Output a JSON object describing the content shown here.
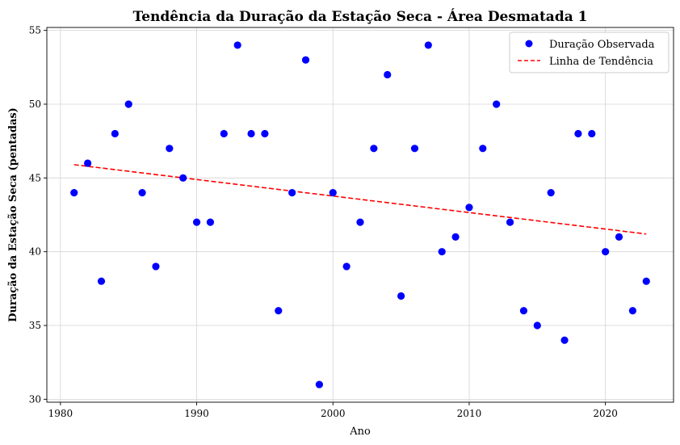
{
  "chart_data": {
    "type": "scatter",
    "title": "Tendência da Duração da Estação Seca - Área Desmatada 1",
    "xlabel": "Ano",
    "ylabel": "Duração da Estação Seca (pentadas)",
    "xlim": [
      1979,
      2025
    ],
    "ylim": [
      29.8,
      55.2
    ],
    "xticks": [
      1980,
      1990,
      2000,
      2010,
      2020
    ],
    "yticks": [
      30,
      35,
      40,
      45,
      50,
      55
    ],
    "grid": true,
    "legend_position": "top-right",
    "series": [
      {
        "name": "Duração Observada",
        "kind": "scatter",
        "color": "#0000ff",
        "x": [
          1981,
          1982,
          1983,
          1984,
          1985,
          1986,
          1987,
          1988,
          1989,
          1990,
          1991,
          1992,
          1993,
          1994,
          1995,
          1996,
          1997,
          1998,
          1999,
          2000,
          2001,
          2002,
          2003,
          2004,
          2005,
          2006,
          2007,
          2008,
          2009,
          2010,
          2011,
          2012,
          2013,
          2014,
          2015,
          2016,
          2017,
          2018,
          2019,
          2020,
          2021,
          2022,
          2023
        ],
        "y": [
          44,
          46,
          38,
          48,
          50,
          44,
          39,
          47,
          45,
          42,
          42,
          48,
          54,
          48,
          48,
          36,
          44,
          53,
          31,
          44,
          39,
          42,
          47,
          52,
          37,
          47,
          54,
          40,
          41,
          43,
          47,
          50,
          42,
          36,
          35,
          44,
          34,
          48,
          48,
          40,
          41,
          36,
          38
        ]
      },
      {
        "name": "Linha de Tendência",
        "kind": "line",
        "style": "dashed",
        "color": "#ff0000",
        "x": [
          1981,
          2023
        ],
        "y": [
          45.9,
          41.2
        ]
      }
    ]
  }
}
